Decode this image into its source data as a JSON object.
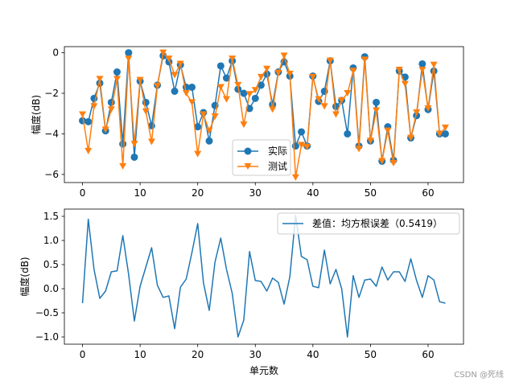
{
  "watermark": "CSDN @死线",
  "chart_data": [
    {
      "type": "line",
      "xlabel": "",
      "ylabel": "幅度(dB)",
      "xlim": [
        -3.15,
        66.15
      ],
      "ylim": [
        -6.4,
        0.3
      ],
      "xticks": [
        0,
        10,
        20,
        30,
        40,
        50,
        60
      ],
      "yticks": [
        0,
        -2,
        -4,
        -6
      ],
      "legend_position": "lower-center",
      "series": [
        {
          "name": "实际",
          "color": "#1f77b4",
          "marker": "circle",
          "x": [
            0,
            1,
            2,
            3,
            4,
            5,
            6,
            7,
            8,
            9,
            10,
            11,
            12,
            13,
            14,
            15,
            16,
            17,
            18,
            19,
            20,
            21,
            22,
            23,
            24,
            25,
            26,
            27,
            28,
            29,
            30,
            31,
            32,
            33,
            34,
            35,
            36,
            37,
            38,
            39,
            40,
            41,
            42,
            43,
            44,
            45,
            46,
            47,
            48,
            49,
            50,
            51,
            52,
            53,
            54,
            55,
            56,
            57,
            58,
            59,
            60,
            61,
            62,
            63
          ],
          "values": [
            -3.35,
            -3.4,
            -2.25,
            -1.5,
            -3.85,
            -2.45,
            -0.95,
            -4.5,
            0.0,
            -5.15,
            -1.4,
            -2.45,
            -3.6,
            -1.6,
            -0.15,
            -0.45,
            -1.9,
            -0.6,
            -1.7,
            -1.7,
            -3.65,
            -2.95,
            -4.35,
            -2.6,
            -0.65,
            -1.25,
            -0.4,
            -1.8,
            -2.0,
            -2.75,
            -2.25,
            -1.6,
            -1.05,
            -2.55,
            -0.95,
            -0.45,
            -1.15,
            -4.6,
            -3.9,
            -4.6,
            -1.15,
            -2.4,
            -1.9,
            -0.4,
            -2.65,
            -2.35,
            -4.0,
            -0.75,
            -4.6,
            -0.2,
            -4.35,
            -2.45,
            -5.35,
            -3.65,
            -5.3,
            -0.9,
            -1.2,
            -4.2,
            -3.1,
            -0.55,
            -2.8,
            -0.9,
            -4.0,
            -4.0
          ]
        },
        {
          "name": "测试",
          "color": "#ff7f0e",
          "marker": "triangle-down",
          "x": [
            0,
            1,
            2,
            3,
            4,
            5,
            6,
            7,
            8,
            9,
            10,
            11,
            12,
            13,
            14,
            15,
            16,
            17,
            18,
            19,
            20,
            21,
            22,
            23,
            24,
            25,
            26,
            27,
            28,
            29,
            30,
            31,
            32,
            33,
            34,
            35,
            36,
            37,
            38,
            39,
            40,
            41,
            42,
            43,
            44,
            45,
            46,
            47,
            48,
            49,
            50,
            51,
            52,
            53,
            54,
            55,
            56,
            57,
            58,
            59,
            60,
            61,
            62,
            63
          ],
          "values": [
            -3.05,
            -4.85,
            -2.65,
            -1.3,
            -3.8,
            -2.8,
            -1.3,
            -5.6,
            -0.3,
            -4.5,
            -1.35,
            -2.9,
            -4.4,
            -1.65,
            0.0,
            -0.3,
            -1.1,
            -0.55,
            -2.0,
            -2.45,
            -5.0,
            -3.05,
            -3.85,
            -3.15,
            -1.7,
            -2.3,
            -0.3,
            -1.6,
            -3.55,
            -2.05,
            -1.85,
            -1.2,
            -0.8,
            -2.8,
            -1.0,
            -0.15,
            -1.05,
            -6.15,
            -4.55,
            -4.65,
            -1.2,
            -2.3,
            -2.65,
            -0.4,
            -3.05,
            -2.35,
            -2.0,
            -0.9,
            -4.75,
            -0.35,
            -4.35,
            -2.85,
            -5.35,
            -3.85,
            -5.45,
            -0.85,
            -1.55,
            -4.2,
            -2.95,
            -0.85,
            -2.75,
            -0.6,
            -4.0,
            -3.7
          ]
        }
      ]
    },
    {
      "type": "line",
      "xlabel": "单元数",
      "ylabel": "幅度(dB)",
      "xlim": [
        -3.15,
        66.15
      ],
      "ylim": [
        -1.15,
        1.65
      ],
      "xticks": [
        0,
        10,
        20,
        30,
        40,
        50,
        60
      ],
      "yticks": [
        1.5,
        1.0,
        0.5,
        0.0,
        -0.5,
        -1.0
      ],
      "legend_position": "upper-right",
      "series": [
        {
          "name": "差值：均方根误差（0.5419）",
          "color": "#1f77b4",
          "x": [
            0,
            1,
            2,
            3,
            4,
            5,
            6,
            7,
            8,
            9,
            10,
            11,
            12,
            13,
            14,
            15,
            16,
            17,
            18,
            19,
            20,
            21,
            22,
            23,
            24,
            25,
            26,
            27,
            28,
            29,
            30,
            31,
            32,
            33,
            34,
            35,
            36,
            37,
            38,
            39,
            40,
            41,
            42,
            43,
            44,
            45,
            46,
            47,
            48,
            49,
            50,
            51,
            52,
            53,
            54,
            55,
            56,
            57,
            58,
            59,
            60,
            61,
            62,
            63
          ],
          "values": [
            -0.3,
            1.44,
            0.4,
            -0.2,
            -0.05,
            0.35,
            0.37,
            1.1,
            0.3,
            -0.67,
            0.05,
            0.45,
            0.85,
            0.07,
            -0.18,
            -0.15,
            -0.83,
            0.03,
            0.2,
            0.75,
            1.35,
            0.12,
            -0.45,
            0.55,
            1.05,
            0.4,
            -0.1,
            -1.0,
            -0.65,
            0.77,
            0.17,
            0.15,
            -0.05,
            0.22,
            0.13,
            -0.32,
            0.25,
            1.52,
            0.67,
            0.6,
            0.05,
            0.02,
            0.8,
            0.1,
            0.4,
            0.0,
            -1.0,
            0.27,
            -0.18,
            0.18,
            0.2,
            0.05,
            0.45,
            0.18,
            0.35,
            0.35,
            0.15,
            0.62,
            0.17,
            -0.18,
            0.27,
            0.18,
            -0.27,
            -0.3
          ]
        }
      ]
    }
  ]
}
